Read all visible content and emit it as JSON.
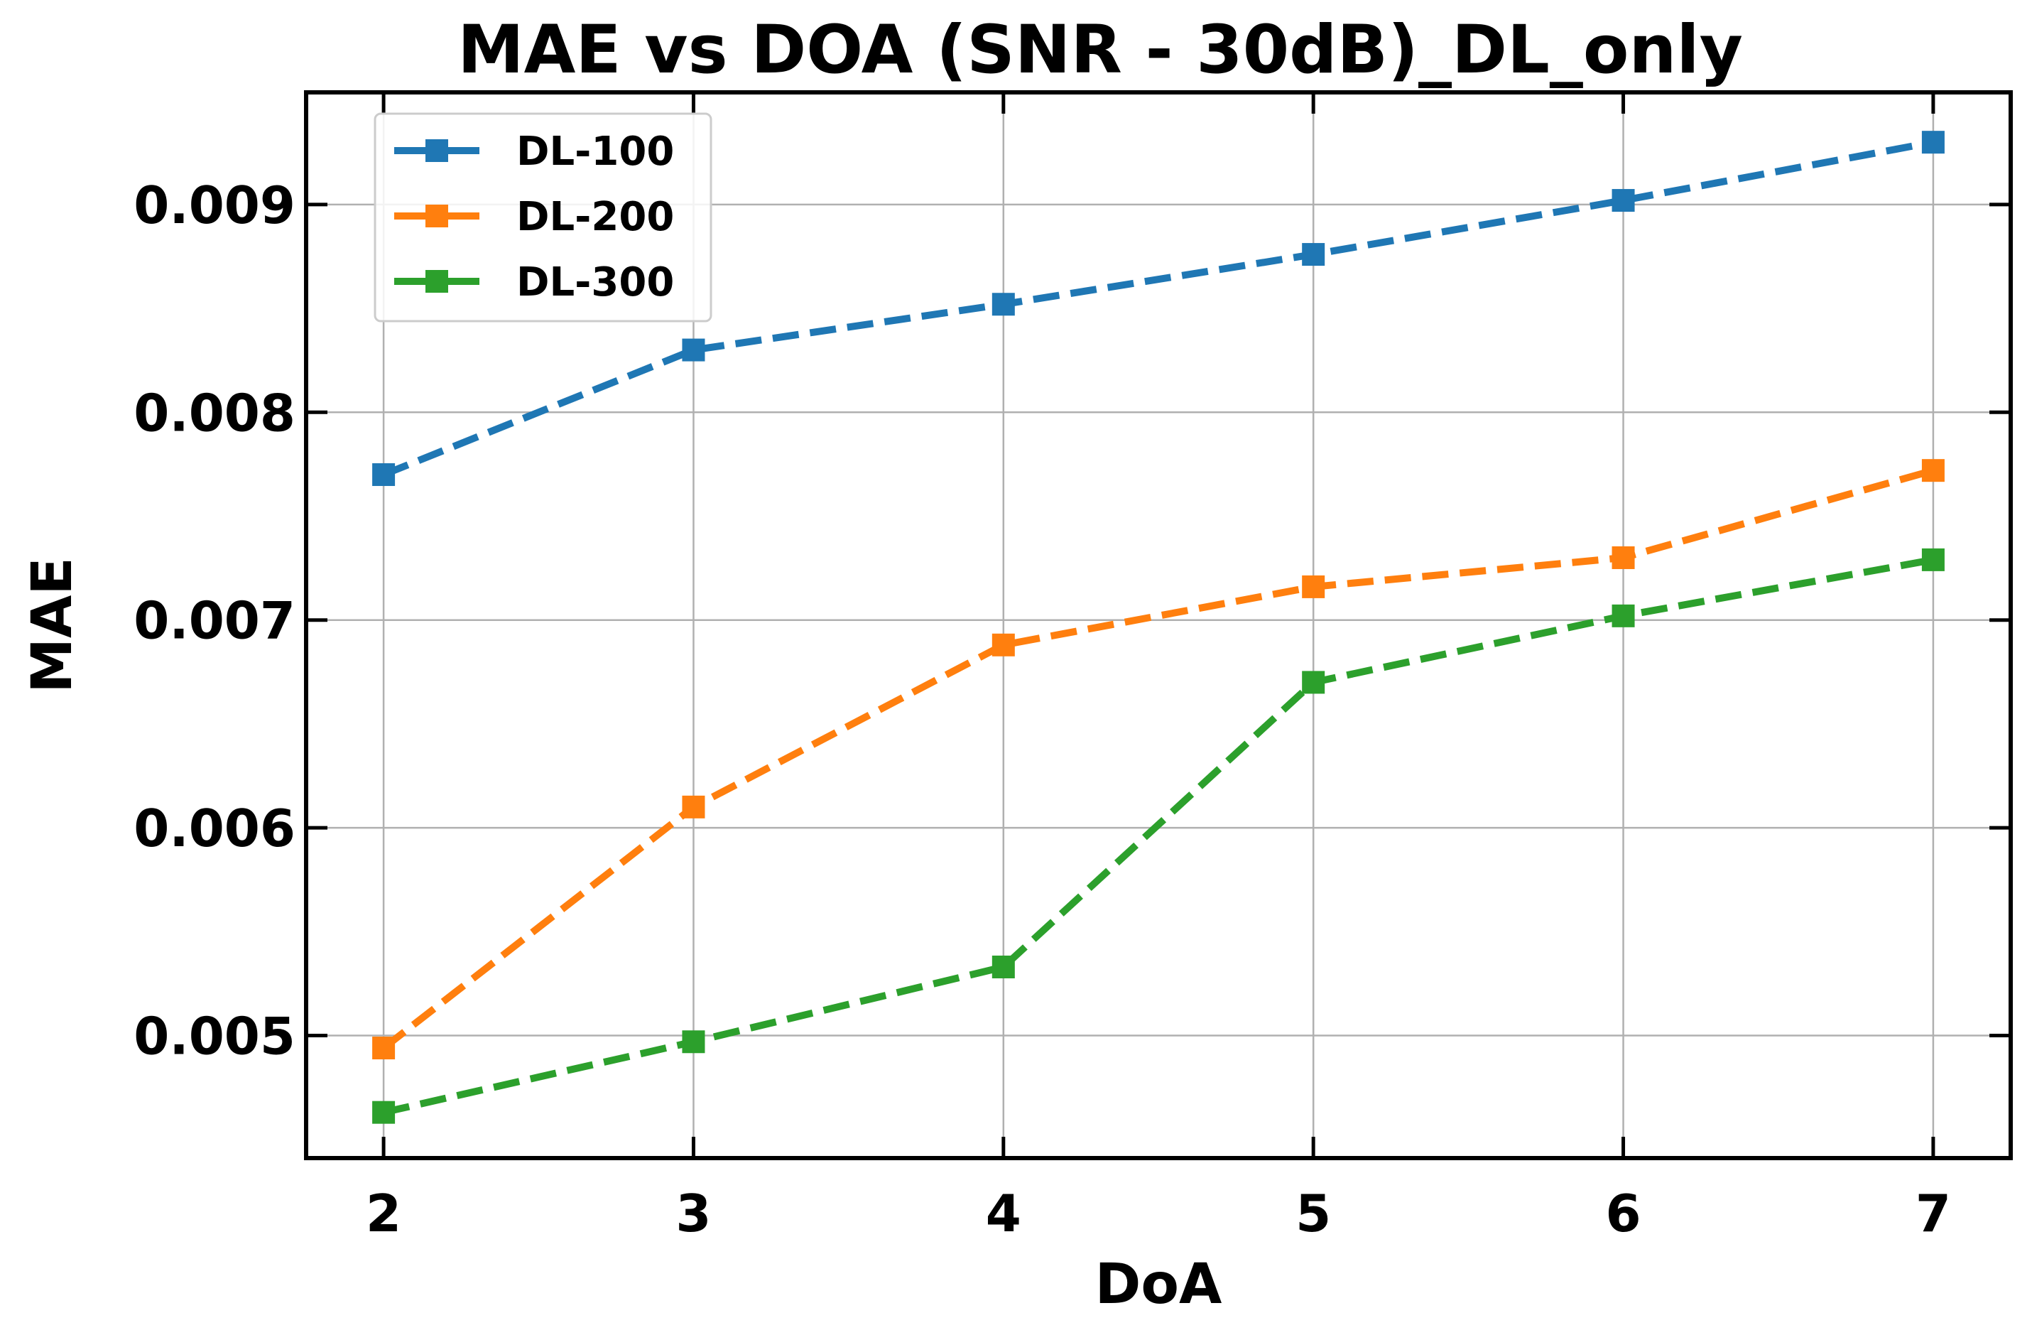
{
  "chart_data": {
    "type": "line",
    "title": "MAE vs DOA (SNR - 30dB)_DL_only",
    "xlabel": "DoA",
    "ylabel": "MAE",
    "x": [
      2,
      3,
      4,
      5,
      6,
      7
    ],
    "xlim": [
      1.75,
      7.25
    ],
    "ylim": [
      0.00441,
      0.00954
    ],
    "xticks": [
      2,
      3,
      4,
      5,
      6,
      7
    ],
    "yticks": [
      0.005,
      0.006,
      0.007,
      0.008,
      0.009
    ],
    "ytick_labels": [
      "0.005",
      "0.006",
      "0.007",
      "0.008",
      "0.009"
    ],
    "grid": true,
    "legend_position": "top-left",
    "series": [
      {
        "name": "DL-100",
        "color": "#1f77b4",
        "values": [
          0.0077,
          0.0083,
          0.00852,
          0.00876,
          0.00902,
          0.0093
        ]
      },
      {
        "name": "DL-200",
        "color": "#ff7f0e",
        "values": [
          0.00494,
          0.0061,
          0.00688,
          0.00716,
          0.0073,
          0.00772
        ]
      },
      {
        "name": "DL-300",
        "color": "#2ca02c",
        "values": [
          0.00463,
          0.00497,
          0.00533,
          0.0067,
          0.00702,
          0.00729
        ]
      }
    ]
  }
}
